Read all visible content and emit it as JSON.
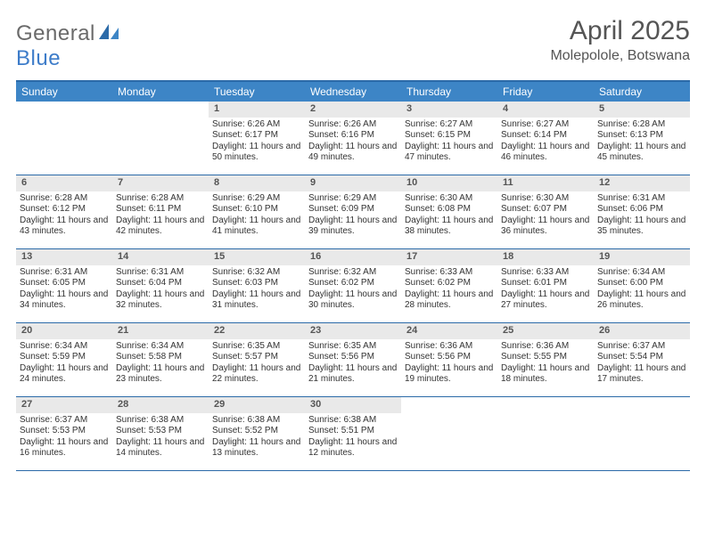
{
  "brand": {
    "part1": "General",
    "part2": "Blue"
  },
  "title": {
    "month": "April 2025",
    "location": "Molepolole, Botswana"
  },
  "colors": {
    "header_bg": "#3d85c6",
    "header_border": "#2b6aa8",
    "daynum_bg": "#e9e9e9",
    "text": "#333333",
    "title_text": "#555555"
  },
  "daynames": [
    "Sunday",
    "Monday",
    "Tuesday",
    "Wednesday",
    "Thursday",
    "Friday",
    "Saturday"
  ],
  "weeks": [
    [
      null,
      null,
      {
        "n": "1",
        "sr": "Sunrise: 6:26 AM",
        "ss": "Sunset: 6:17 PM",
        "dl": "Daylight: 11 hours and 50 minutes."
      },
      {
        "n": "2",
        "sr": "Sunrise: 6:26 AM",
        "ss": "Sunset: 6:16 PM",
        "dl": "Daylight: 11 hours and 49 minutes."
      },
      {
        "n": "3",
        "sr": "Sunrise: 6:27 AM",
        "ss": "Sunset: 6:15 PM",
        "dl": "Daylight: 11 hours and 47 minutes."
      },
      {
        "n": "4",
        "sr": "Sunrise: 6:27 AM",
        "ss": "Sunset: 6:14 PM",
        "dl": "Daylight: 11 hours and 46 minutes."
      },
      {
        "n": "5",
        "sr": "Sunrise: 6:28 AM",
        "ss": "Sunset: 6:13 PM",
        "dl": "Daylight: 11 hours and 45 minutes."
      }
    ],
    [
      {
        "n": "6",
        "sr": "Sunrise: 6:28 AM",
        "ss": "Sunset: 6:12 PM",
        "dl": "Daylight: 11 hours and 43 minutes."
      },
      {
        "n": "7",
        "sr": "Sunrise: 6:28 AM",
        "ss": "Sunset: 6:11 PM",
        "dl": "Daylight: 11 hours and 42 minutes."
      },
      {
        "n": "8",
        "sr": "Sunrise: 6:29 AM",
        "ss": "Sunset: 6:10 PM",
        "dl": "Daylight: 11 hours and 41 minutes."
      },
      {
        "n": "9",
        "sr": "Sunrise: 6:29 AM",
        "ss": "Sunset: 6:09 PM",
        "dl": "Daylight: 11 hours and 39 minutes."
      },
      {
        "n": "10",
        "sr": "Sunrise: 6:30 AM",
        "ss": "Sunset: 6:08 PM",
        "dl": "Daylight: 11 hours and 38 minutes."
      },
      {
        "n": "11",
        "sr": "Sunrise: 6:30 AM",
        "ss": "Sunset: 6:07 PM",
        "dl": "Daylight: 11 hours and 36 minutes."
      },
      {
        "n": "12",
        "sr": "Sunrise: 6:31 AM",
        "ss": "Sunset: 6:06 PM",
        "dl": "Daylight: 11 hours and 35 minutes."
      }
    ],
    [
      {
        "n": "13",
        "sr": "Sunrise: 6:31 AM",
        "ss": "Sunset: 6:05 PM",
        "dl": "Daylight: 11 hours and 34 minutes."
      },
      {
        "n": "14",
        "sr": "Sunrise: 6:31 AM",
        "ss": "Sunset: 6:04 PM",
        "dl": "Daylight: 11 hours and 32 minutes."
      },
      {
        "n": "15",
        "sr": "Sunrise: 6:32 AM",
        "ss": "Sunset: 6:03 PM",
        "dl": "Daylight: 11 hours and 31 minutes."
      },
      {
        "n": "16",
        "sr": "Sunrise: 6:32 AM",
        "ss": "Sunset: 6:02 PM",
        "dl": "Daylight: 11 hours and 30 minutes."
      },
      {
        "n": "17",
        "sr": "Sunrise: 6:33 AM",
        "ss": "Sunset: 6:02 PM",
        "dl": "Daylight: 11 hours and 28 minutes."
      },
      {
        "n": "18",
        "sr": "Sunrise: 6:33 AM",
        "ss": "Sunset: 6:01 PM",
        "dl": "Daylight: 11 hours and 27 minutes."
      },
      {
        "n": "19",
        "sr": "Sunrise: 6:34 AM",
        "ss": "Sunset: 6:00 PM",
        "dl": "Daylight: 11 hours and 26 minutes."
      }
    ],
    [
      {
        "n": "20",
        "sr": "Sunrise: 6:34 AM",
        "ss": "Sunset: 5:59 PM",
        "dl": "Daylight: 11 hours and 24 minutes."
      },
      {
        "n": "21",
        "sr": "Sunrise: 6:34 AM",
        "ss": "Sunset: 5:58 PM",
        "dl": "Daylight: 11 hours and 23 minutes."
      },
      {
        "n": "22",
        "sr": "Sunrise: 6:35 AM",
        "ss": "Sunset: 5:57 PM",
        "dl": "Daylight: 11 hours and 22 minutes."
      },
      {
        "n": "23",
        "sr": "Sunrise: 6:35 AM",
        "ss": "Sunset: 5:56 PM",
        "dl": "Daylight: 11 hours and 21 minutes."
      },
      {
        "n": "24",
        "sr": "Sunrise: 6:36 AM",
        "ss": "Sunset: 5:56 PM",
        "dl": "Daylight: 11 hours and 19 minutes."
      },
      {
        "n": "25",
        "sr": "Sunrise: 6:36 AM",
        "ss": "Sunset: 5:55 PM",
        "dl": "Daylight: 11 hours and 18 minutes."
      },
      {
        "n": "26",
        "sr": "Sunrise: 6:37 AM",
        "ss": "Sunset: 5:54 PM",
        "dl": "Daylight: 11 hours and 17 minutes."
      }
    ],
    [
      {
        "n": "27",
        "sr": "Sunrise: 6:37 AM",
        "ss": "Sunset: 5:53 PM",
        "dl": "Daylight: 11 hours and 16 minutes."
      },
      {
        "n": "28",
        "sr": "Sunrise: 6:38 AM",
        "ss": "Sunset: 5:53 PM",
        "dl": "Daylight: 11 hours and 14 minutes."
      },
      {
        "n": "29",
        "sr": "Sunrise: 6:38 AM",
        "ss": "Sunset: 5:52 PM",
        "dl": "Daylight: 11 hours and 13 minutes."
      },
      {
        "n": "30",
        "sr": "Sunrise: 6:38 AM",
        "ss": "Sunset: 5:51 PM",
        "dl": "Daylight: 11 hours and 12 minutes."
      },
      null,
      null,
      null
    ]
  ]
}
